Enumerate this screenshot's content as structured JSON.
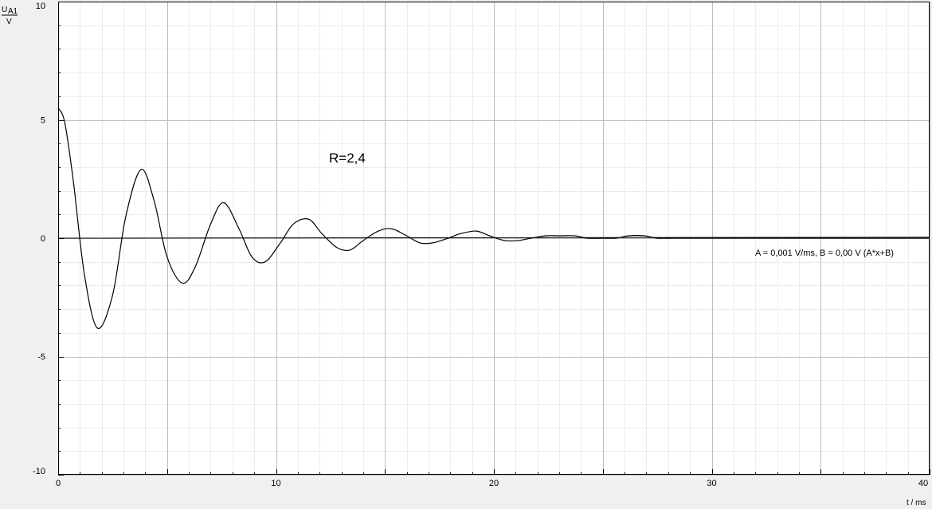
{
  "chart_data": {
    "type": "line",
    "title": "",
    "xlabel": "t / ms",
    "ylabel": {
      "symbol": "U",
      "subscript": "A1",
      "unit": "V"
    },
    "xlim": [
      0,
      40
    ],
    "ylim": [
      -10,
      10
    ],
    "x_ticks": [
      0,
      10,
      20,
      30,
      40
    ],
    "y_ticks": [
      10,
      5,
      0,
      -5,
      -10
    ],
    "x_tick_labels": [
      "0",
      "10",
      "20",
      "30",
      "40"
    ],
    "y_tick_labels": [
      "10",
      "5",
      "0",
      "-5",
      "-10"
    ],
    "grid": true,
    "annotation": "R=2,4",
    "fit_label": "A = 0,001 V/ms,   B = 0,00 V   (A*x+B)",
    "series": [
      {
        "role": "measured",
        "color": "#000000",
        "x": [
          0,
          0.3,
          0.7,
          1.2,
          1.8,
          2.5,
          3.1,
          3.8,
          4.4,
          5.0,
          5.7,
          6.3,
          7.0,
          7.6,
          8.3,
          8.9,
          9.5,
          10.2,
          10.8,
          11.5,
          12.1,
          12.8,
          13.4,
          14.0,
          14.7,
          15.3,
          16.0,
          16.6,
          17.2,
          17.9,
          18.5,
          19.2,
          19.8,
          20.5,
          21.1,
          21.7,
          22.4,
          23.0,
          23.7,
          24.3,
          25.0,
          25.6,
          26.2,
          26.9,
          27.5,
          28.2,
          28.8,
          29.4,
          30.1,
          30.7,
          31.4,
          32.0,
          32.7,
          33.3,
          33.9,
          34.6,
          35.2,
          35.9,
          36.5,
          37.2,
          37.8,
          38.4,
          39.1,
          39.7,
          40.0
        ],
        "y": [
          5.5,
          4.9,
          2.4,
          -1.5,
          -3.8,
          -2.4,
          0.9,
          2.9,
          1.6,
          -0.8,
          -1.9,
          -1.2,
          0.6,
          1.5,
          0.4,
          -0.8,
          -1.0,
          -0.2,
          0.6,
          0.8,
          0.2,
          -0.4,
          -0.5,
          -0.1,
          0.3,
          0.4,
          0.1,
          -0.2,
          -0.2,
          0.0,
          0.2,
          0.3,
          0.1,
          -0.1,
          -0.1,
          0.0,
          0.1,
          0.1,
          0.1,
          0.0,
          0.0,
          0.0,
          0.1,
          0.1,
          0.0,
          0.0,
          0.0,
          0.0,
          0.0,
          0.0,
          0.0,
          0.0,
          0.0,
          0.0,
          0.0,
          0.0,
          0.0,
          0.0,
          0.0,
          0.0,
          0.0,
          0.0,
          0.0,
          0.0,
          0.0
        ]
      },
      {
        "role": "fit",
        "color": "#000000",
        "x": [
          0,
          40
        ],
        "y": [
          0.0,
          0.04
        ]
      }
    ]
  }
}
